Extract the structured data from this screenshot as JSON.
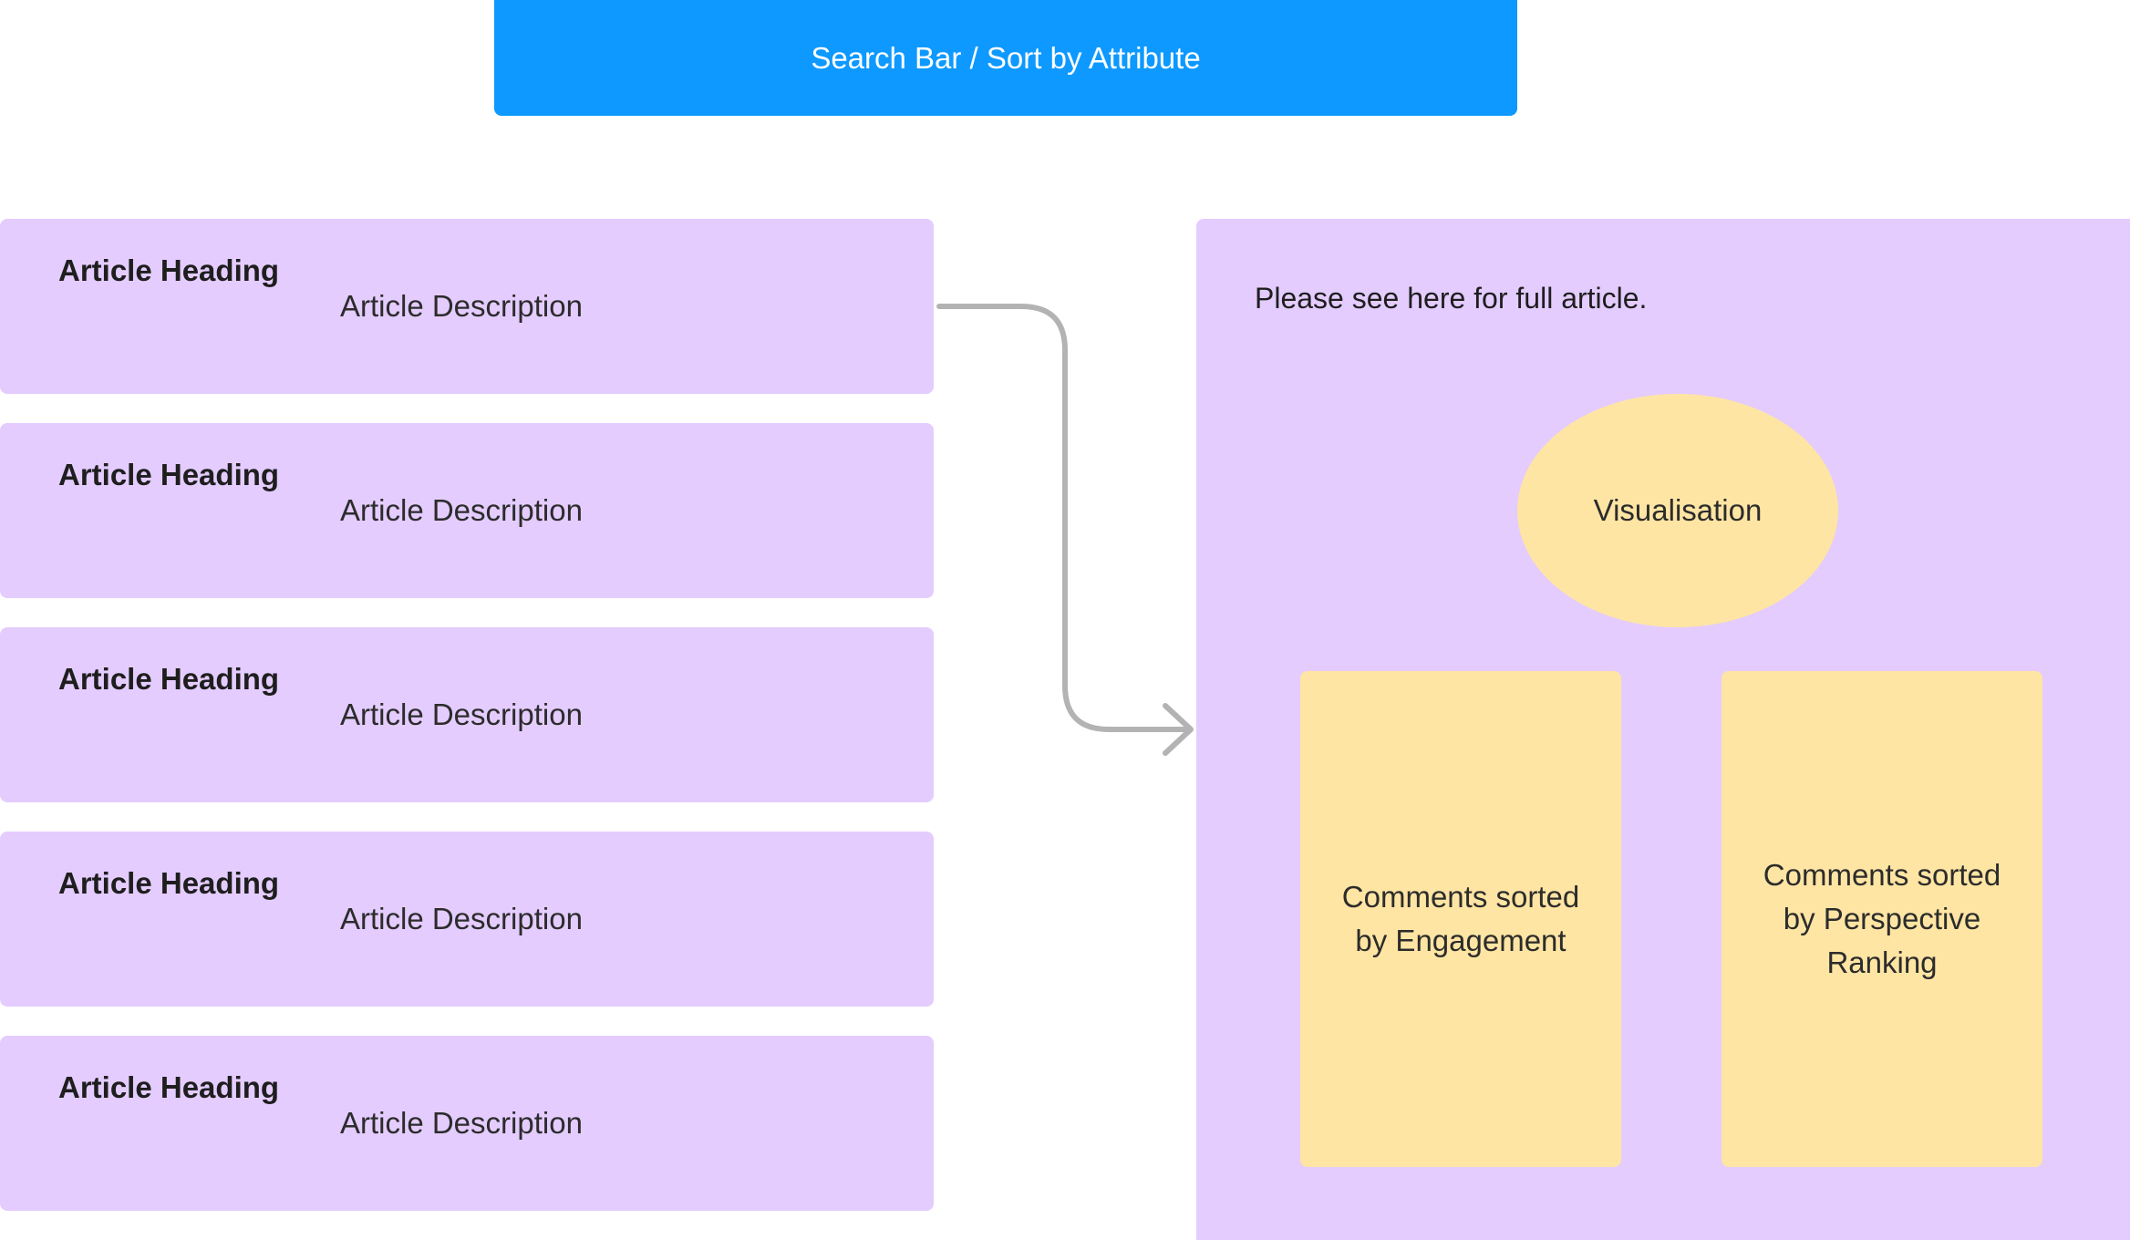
{
  "search_bar": {
    "label": "Search Bar / Sort by Attribute"
  },
  "articles": [
    {
      "heading": "Article Heading",
      "description": "Article Description"
    },
    {
      "heading": "Article Heading",
      "description": "Article Description"
    },
    {
      "heading": "Article Heading",
      "description": "Article Description"
    },
    {
      "heading": "Article Heading",
      "description": "Article Description"
    },
    {
      "heading": "Article Heading",
      "description": "Article Description"
    }
  ],
  "detail_panel": {
    "intro_text": "Please see here for full article.",
    "visualisation_label": "Visualisation",
    "comments_engagement_label": "Comments sorted by Engagement",
    "comments_perspective_label": "Comments sorted by Perspective Ranking"
  },
  "colors": {
    "search_bar": "#0d99ff",
    "card_purple": "#e4ccff",
    "card_yellow": "#ffe5a3",
    "connector_gray": "#b3b3b3"
  }
}
